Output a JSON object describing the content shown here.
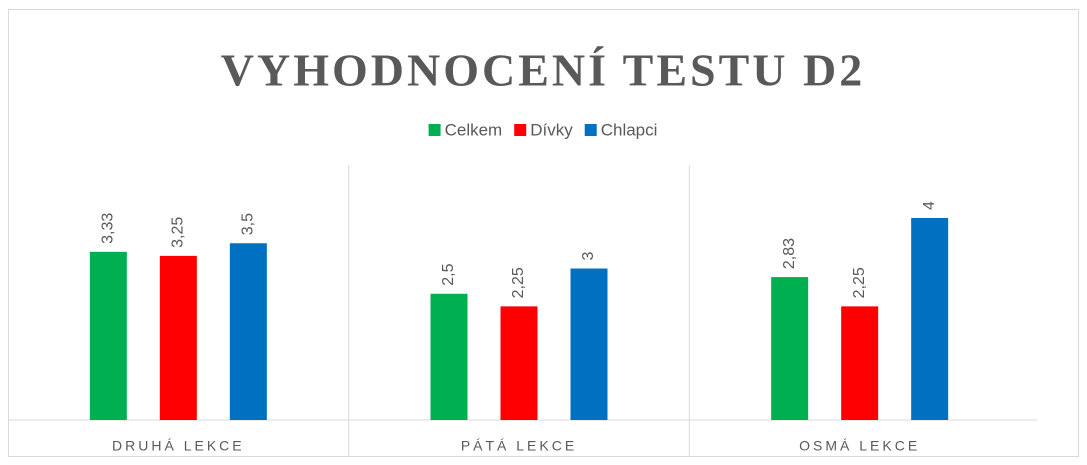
{
  "chart_data": {
    "type": "bar",
    "title": "VYHODNOCENÍ TESTU D2",
    "categories": [
      "DRUHÁ LEKCE",
      "PÁTÁ LEKCE",
      "OSMÁ LEKCE"
    ],
    "series": [
      {
        "name": "Celkem",
        "color": "#00b050",
        "values": [
          3.33,
          2.5,
          2.83
        ],
        "value_labels": [
          "3,33",
          "2,5",
          "2,83"
        ]
      },
      {
        "name": "Dívky",
        "color": "#ff0000",
        "values": [
          3.25,
          2.25,
          2.25
        ],
        "value_labels": [
          "3,25",
          "2,25",
          "2,25"
        ]
      },
      {
        "name": "Chlapci",
        "color": "#0070c0",
        "values": [
          3.5,
          3,
          4
        ],
        "value_labels": [
          "3,5",
          "3",
          "4"
        ]
      }
    ],
    "legend": "top"
  }
}
